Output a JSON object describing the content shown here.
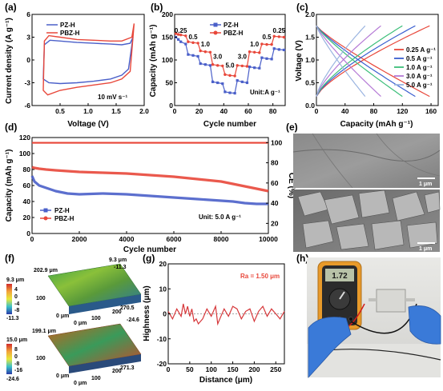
{
  "figure_panels": {
    "a": "(a)",
    "b": "(b)",
    "c": "(c)",
    "d": "(d)",
    "e": "(e)",
    "f": "(f)",
    "g": "(g)",
    "h": "(h)"
  },
  "colors": {
    "red": "#e8473a",
    "blue": "#4a5fc9",
    "c_025": "#e8473a",
    "c_05": "#3a5fd0",
    "c_10": "#3cbf7a",
    "c_30": "#b57ad6",
    "c_50": "#9ab4e0",
    "g_line": "#d6373a",
    "g_ra": "#e8473a"
  },
  "panel_a": {
    "xlabel": "Voltage (V)",
    "ylabel": "Current density (A g⁻¹)",
    "annotation": "10 mV s⁻¹",
    "legend": [
      "PZ-H",
      "PBZ-H"
    ],
    "xticks": [
      "0.5",
      "1.0",
      "1.5",
      "2.0"
    ],
    "yticks": [
      "6",
      "3",
      "0",
      "-3",
      "-6"
    ]
  },
  "panel_b": {
    "xlabel": "Cycle number",
    "ylabel": "Capacity (mAh g⁻¹)",
    "legend": [
      "PZ-H",
      "PBZ-H"
    ],
    "unit": "Unit:A g⁻¹",
    "rates": [
      "0.25",
      "0.5",
      "1.0",
      "3.0",
      "5.0",
      "3.0",
      "1.0",
      "0.5",
      "0.25"
    ],
    "xticks": [
      "0",
      "20",
      "40",
      "60",
      "80"
    ],
    "yticks": [
      "200",
      "150",
      "100",
      "50",
      "0"
    ]
  },
  "panel_c": {
    "xlabel": "Capacity (mAh g⁻¹)",
    "ylabel": "Voltage (V)",
    "legend": [
      "0.25 A g⁻¹",
      "0.5 A g⁻¹",
      "1.0 A g⁻¹",
      "3.0 A g⁻¹",
      "5.0 A g⁻¹"
    ],
    "xticks": [
      "0",
      "40",
      "80",
      "120",
      "160"
    ],
    "yticks": [
      "2.0",
      "1.5",
      "1.0",
      "0.5",
      "0.0"
    ]
  },
  "panel_d": {
    "xlabel": "Cycle number",
    "ylabel_left": "Capacity (mAh g⁻¹)",
    "ylabel_right": "CE (%)",
    "legend": [
      "PZ-H",
      "PBZ-H"
    ],
    "unit": "Unit: 5.0 A g⁻¹",
    "xticks": [
      "0",
      "2000",
      "4000",
      "6000",
      "8000",
      "10000"
    ],
    "yticks_left": [
      "120",
      "100",
      "80",
      "60",
      "40",
      "20",
      "0"
    ],
    "yticks_right": [
      "100",
      "80",
      "60",
      "40",
      "20"
    ]
  },
  "panel_e": {
    "scale": [
      "1 μm",
      "1 μm"
    ]
  },
  "panel_f": {
    "top_scale": [
      "9.3 μm",
      "4",
      "0",
      "-4",
      "-8",
      "-11.3"
    ],
    "top_labels": [
      "202.9 μm",
      "9.3 μm",
      "-11.3",
      "100",
      "200",
      "270.5",
      "0 μm",
      "0 μm",
      "100",
      "-24.6"
    ],
    "bot_scale": [
      "15.0 μm",
      "8",
      "0",
      "-8",
      "-16",
      "-24.6"
    ],
    "bot_labels": [
      "199.1 μm",
      "100",
      "200",
      "271.3",
      "0 μm",
      "0 μm",
      "100",
      "15.0 μm",
      "-24.6"
    ]
  },
  "panel_g": {
    "xlabel": "Distance (μm)",
    "ylabel": "Highness (μm)",
    "ra": "Ra = 1.50 μm",
    "xticks": [
      "0",
      "50",
      "100",
      "150",
      "200",
      "250"
    ],
    "yticks": [
      "20",
      "10",
      "0",
      "-10",
      "-20"
    ]
  },
  "panel_h": {
    "meter_reading": "1.72"
  },
  "chart_data": [
    {
      "type": "line",
      "panel": "a",
      "xlabel": "Voltage (V)",
      "ylabel": "Current density (A g⁻¹)",
      "xlim": [
        0,
        2.0
      ],
      "ylim": [
        -6,
        6
      ],
      "series": [
        {
          "name": "PZ-H",
          "x": [
            0.2,
            0.3,
            0.5,
            0.8,
            1.1,
            1.4,
            1.6,
            1.72,
            1.8,
            1.75,
            1.6,
            1.4,
            1.1,
            0.8,
            0.5,
            0.32,
            0.22,
            0.2
          ],
          "y": [
            -2.5,
            -3.0,
            -3.1,
            -3.0,
            -2.8,
            -2.5,
            -2.0,
            -1.2,
            3.0,
            2.2,
            2.0,
            2.1,
            2.2,
            2.3,
            2.5,
            2.6,
            2.0,
            -2.5
          ]
        },
        {
          "name": "PBZ-H",
          "x": [
            0.2,
            0.28,
            0.5,
            0.8,
            1.1,
            1.4,
            1.6,
            1.75,
            1.82,
            1.78,
            1.6,
            1.4,
            1.1,
            0.8,
            0.5,
            0.3,
            0.22,
            0.2
          ],
          "y": [
            -4.0,
            -4.6,
            -4.0,
            -3.6,
            -3.3,
            -3.0,
            -2.5,
            -1.5,
            4.8,
            3.0,
            2.5,
            2.5,
            2.6,
            2.7,
            3.0,
            3.2,
            2.5,
            -4.0
          ]
        }
      ]
    },
    {
      "type": "line",
      "panel": "b",
      "xlabel": "Cycle number",
      "ylabel": "Capacity (mAh g⁻¹)",
      "xlim": [
        0,
        90
      ],
      "ylim": [
        0,
        200
      ],
      "series": [
        {
          "name": "PZ-H",
          "x": [
            1,
            3,
            5,
            9,
            11,
            15,
            19,
            21,
            25,
            29,
            31,
            35,
            39,
            41,
            45,
            49,
            51,
            55,
            59,
            61,
            65,
            69,
            71,
            75,
            79,
            81,
            85,
            89
          ],
          "y": [
            150,
            145,
            140,
            135,
            112,
            110,
            108,
            92,
            90,
            88,
            52,
            50,
            48,
            30,
            28,
            27,
            55,
            52,
            50,
            85,
            83,
            82,
            105,
            103,
            102,
            125,
            123,
            122
          ]
        },
        {
          "name": "PBZ-H",
          "x": [
            1,
            3,
            5,
            9,
            11,
            15,
            19,
            21,
            25,
            29,
            31,
            35,
            39,
            41,
            45,
            49,
            51,
            55,
            59,
            61,
            65,
            69,
            71,
            75,
            79,
            81,
            85,
            89
          ],
          "y": [
            158,
            156,
            155,
            153,
            140,
            138,
            137,
            120,
            118,
            117,
            90,
            88,
            87,
            68,
            66,
            65,
            88,
            87,
            86,
            118,
            117,
            116,
            135,
            134,
            134,
            152,
            151,
            150
          ]
        }
      ]
    },
    {
      "type": "line",
      "panel": "c",
      "xlabel": "Capacity (mAh g⁻¹)",
      "ylabel": "Voltage (V)",
      "xlim": [
        0,
        170
      ],
      "ylim": [
        0,
        2.0
      ],
      "series": [
        {
          "name": "0.25 A g⁻¹",
          "max_capacity": 158
        },
        {
          "name": "0.5 A g⁻¹",
          "max_capacity": 138
        },
        {
          "name": "1.0 A g⁻¹",
          "max_capacity": 120
        },
        {
          "name": "3.0 A g⁻¹",
          "max_capacity": 90
        },
        {
          "name": "5.0 A g⁻¹",
          "max_capacity": 68
        }
      ]
    },
    {
      "type": "line",
      "panel": "d",
      "xlabel": "Cycle number",
      "ylabel": "Capacity (mAh g⁻¹)",
      "xlim": [
        0,
        10000
      ],
      "ylim": [
        0,
        120
      ],
      "series": [
        {
          "name": "PZ-H",
          "x": [
            0,
            100,
            300,
            600,
            1000,
            1500,
            2000,
            3000,
            4000,
            5000,
            6000,
            7000,
            8000,
            8500,
            9000,
            9500,
            10000
          ],
          "y": [
            72,
            65,
            60,
            57,
            53,
            50,
            49,
            50,
            49,
            47,
            45,
            43,
            41,
            40,
            38,
            37,
            37
          ]
        },
        {
          "name": "PBZ-H",
          "x": [
            0,
            100,
            300,
            600,
            1000,
            1500,
            2000,
            3000,
            4000,
            5000,
            6000,
            7000,
            8000,
            8500,
            9000,
            9500,
            10000
          ],
          "y": [
            83,
            82,
            81,
            80,
            79,
            78,
            77,
            76,
            75,
            73,
            71,
            68,
            65,
            62,
            59,
            56,
            53
          ]
        },
        {
          "name": "CE",
          "x": [
            0,
            10000
          ],
          "y": [
            100,
            100
          ]
        }
      ]
    },
    {
      "type": "line",
      "panel": "g",
      "xlabel": "Distance (μm)",
      "ylabel": "Highness (μm)",
      "xlim": [
        0,
        270
      ],
      "ylim": [
        -20,
        20
      ],
      "series": [
        {
          "name": "profile",
          "x": [
            0,
            10,
            20,
            30,
            35,
            40,
            45,
            50,
            55,
            60,
            65,
            70,
            75,
            80,
            90,
            100,
            110,
            115,
            120,
            130,
            140,
            150,
            160,
            170,
            180,
            190,
            200,
            210,
            220,
            230,
            240,
            250,
            260,
            270
          ],
          "y": [
            1,
            -2,
            2,
            -1,
            4,
            0,
            3,
            -1,
            2,
            -3,
            -2,
            -4,
            -3,
            -2,
            2,
            -1,
            3,
            -4,
            -2,
            2,
            -1,
            3,
            2,
            -2,
            1,
            2,
            -3,
            1,
            3,
            -1,
            2,
            0,
            -2,
            1
          ]
        }
      ]
    }
  ]
}
